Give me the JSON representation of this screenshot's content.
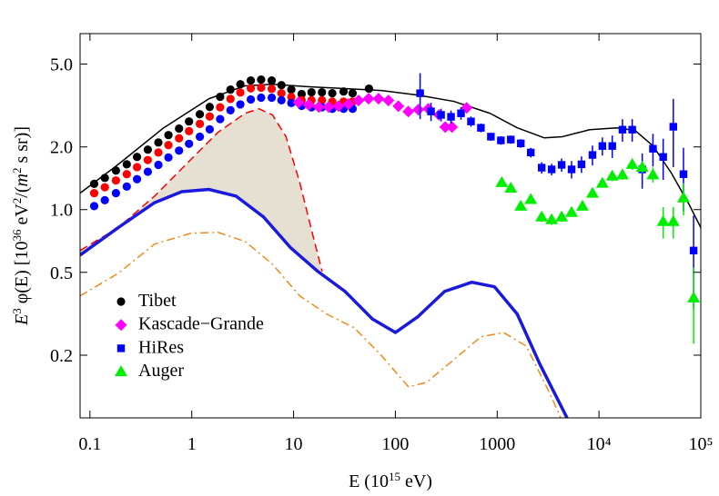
{
  "chart_data": {
    "type": "scatter",
    "xlabel": [
      {
        "text": "E (10"
      },
      {
        "text": "15",
        "sup": true
      },
      {
        "text": " eV)"
      }
    ],
    "ylabel": [
      {
        "text": "E",
        "italic": true
      },
      {
        "text": "3",
        "sup": true
      },
      {
        "text": " φ(E)  [10"
      },
      {
        "text": "36",
        "sup": true
      },
      {
        "text": " eV"
      },
      {
        "text": "2",
        "sup": true
      },
      {
        "text": "/("
      },
      {
        "text": "m",
        "italic": true
      },
      {
        "text": "2",
        "sup": true
      },
      {
        "text": " s sr)]"
      }
    ],
    "xscale": "log",
    "yscale": "log",
    "xlim": [
      0.08,
      100000
    ],
    "ylim": [
      0.1,
      7
    ],
    "xticks": [
      0.1,
      1,
      10,
      100,
      1000,
      {
        "value": 10000,
        "label": "10⁴"
      },
      {
        "value": 100000,
        "label": "10⁵"
      }
    ],
    "yticks": [
      0.2,
      0.5,
      {
        "value": 1,
        "label": "1.0"
      },
      {
        "value": 2,
        "label": "2.0"
      },
      {
        "value": 5,
        "label": "5.0"
      }
    ],
    "legend": "lower left",
    "shade_color": "#e6e0d2",
    "series": [
      {
        "name": "Tibet",
        "color": "#000000",
        "marker": "circle",
        "x": [
          0.11,
          0.14,
          0.18,
          0.23,
          0.29,
          0.37,
          0.47,
          0.59,
          0.75,
          0.94,
          1.2,
          1.5,
          1.9,
          2.4,
          3.0,
          3.8,
          4.8,
          6.1,
          7.6,
          9.5,
          12,
          15,
          19,
          24,
          31,
          38,
          55
        ],
        "values": [
          1.33,
          1.42,
          1.54,
          1.65,
          1.79,
          1.94,
          2.1,
          2.28,
          2.45,
          2.65,
          2.87,
          3.11,
          3.48,
          3.77,
          4.0,
          4.17,
          4.21,
          4.17,
          3.96,
          3.77,
          3.59,
          3.66,
          3.66,
          3.62,
          3.69,
          3.62,
          3.81
        ]
      },
      {
        "color": "#ff0000",
        "marker": "circle",
        "x": [
          0.11,
          0.14,
          0.18,
          0.23,
          0.29,
          0.37,
          0.47,
          0.59,
          0.75,
          0.94,
          1.2,
          1.5,
          1.9,
          2.4,
          3.0,
          3.8,
          4.8,
          6.1,
          7.6,
          9.5,
          12,
          15,
          19,
          24,
          31,
          38
        ],
        "values": [
          1.2,
          1.28,
          1.38,
          1.48,
          1.6,
          1.73,
          1.88,
          2.04,
          2.2,
          2.38,
          2.58,
          2.8,
          3.1,
          3.4,
          3.65,
          3.82,
          3.85,
          3.8,
          3.62,
          3.47,
          3.35,
          3.35,
          3.35,
          3.3,
          3.3,
          3.3
        ]
      },
      {
        "color": "#0000ff",
        "marker": "circle",
        "x": [
          0.11,
          0.14,
          0.18,
          0.23,
          0.29,
          0.37,
          0.47,
          0.59,
          0.75,
          0.94,
          1.2,
          1.5,
          1.9,
          2.4,
          3.0,
          3.8,
          4.8,
          6.1,
          7.6,
          9.5,
          12,
          15,
          19,
          24,
          31,
          38
        ],
        "values": [
          1.04,
          1.11,
          1.2,
          1.29,
          1.4,
          1.52,
          1.64,
          1.78,
          1.92,
          2.07,
          2.24,
          2.43,
          2.72,
          3.0,
          3.2,
          3.38,
          3.45,
          3.45,
          3.35,
          3.25,
          3.15,
          3.1,
          3.1,
          3.05,
          3.05,
          3.05
        ]
      },
      {
        "name": "Kascade−Grande",
        "color": "#ff00ff",
        "marker": "diamond",
        "x": [
          11.2,
          14.1,
          17.7,
          22.1,
          27.7,
          34.7,
          43.5,
          54.5,
          68.3,
          85.5,
          107,
          134,
          168,
          211,
          269,
          309,
          360,
          501
        ],
        "values": [
          3.27,
          3.18,
          3.11,
          3.11,
          3.14,
          3.21,
          3.34,
          3.41,
          3.41,
          3.34,
          3.14,
          2.96,
          3.02,
          3.05,
          2.85,
          2.49,
          2.49,
          3.08
        ]
      },
      {
        "name": "HiRes",
        "color": "#0000ff",
        "marker": "square",
        "x": [
          175,
          224,
          281,
          352,
          441,
          553,
          692,
          867,
          1087,
          1361,
          1706,
          2138,
          2736,
          3428,
          4295,
          5380,
          6736,
          8630,
          10800,
          13500,
          17000,
          21200,
          26600,
          33900,
          42700,
          53700,
          67600,
          85000
        ],
        "values": [
          3.62,
          2.96,
          2.85,
          2.79,
          2.9,
          2.65,
          2.47,
          2.24,
          2.15,
          2.17,
          2.08,
          1.88,
          1.59,
          1.56,
          1.64,
          1.56,
          1.65,
          1.83,
          2.02,
          2.02,
          2.42,
          2.42,
          1.56,
          1.96,
          1.79,
          2.5,
          1.48,
          0.636
        ],
        "errors": [
          0.9,
          0.3,
          0.2,
          0.2,
          0.2,
          0.15,
          0.12,
          0.1,
          0.1,
          0.1,
          0.1,
          0.1,
          0.1,
          0.1,
          0.12,
          0.15,
          0.15,
          0.2,
          0.2,
          0.25,
          0.3,
          0.3,
          0.3,
          0.35,
          0.4,
          0.9,
          0.5,
          0.3
        ]
      },
      {
        "name": "Auger",
        "color": "#00ee00",
        "marker": "triangle",
        "x": [
          1110,
          1361,
          1706,
          2138,
          2736,
          3428,
          4295,
          5380,
          6880,
          8630,
          10800,
          13500,
          17000,
          21200,
          26600,
          33900,
          42700,
          53700,
          67600,
          85000
        ],
        "values": [
          1.35,
          1.27,
          1.04,
          1.12,
          0.923,
          0.895,
          0.923,
          0.97,
          1.04,
          1.2,
          1.34,
          1.45,
          1.47,
          1.65,
          1.6,
          1.47,
          0.877,
          0.877,
          1.14,
          0.377
        ],
        "errors": [
          0.05,
          0.05,
          0.05,
          0.05,
          0.05,
          0.05,
          0.05,
          0.05,
          0.05,
          0.06,
          0.07,
          0.08,
          0.08,
          0.1,
          0.1,
          0.12,
          0.15,
          0.15,
          0.2,
          0.15
        ]
      }
    ],
    "curves": [
      {
        "color": "#000000",
        "dash": "solid",
        "linewidth": 1.5,
        "x": [
          0.08,
          0.19,
          0.53,
          1.48,
          3.35,
          6.2,
          14.1,
          32,
          72.6,
          165,
          374,
          851,
          1574,
          2911,
          4385,
          8110,
          15000,
          22600,
          34000,
          51300,
          77400,
          100000
        ],
        "values": [
          1.2,
          1.65,
          2.47,
          3.41,
          3.93,
          4.0,
          3.89,
          3.81,
          3.73,
          3.55,
          3.31,
          2.9,
          2.47,
          2.21,
          2.24,
          2.42,
          2.47,
          2.4,
          2.02,
          1.5,
          1.05,
          0.82
        ]
      },
      {
        "color": "#ff0000",
        "dash": "dashed",
        "linewidth": 1.5,
        "x": [
          0.08,
          0.19,
          0.431,
          0.98,
          1.81,
          3.35,
          4.56,
          6.2,
          8.43,
          11.5,
          15.6,
          19.1
        ],
        "values": [
          0.636,
          0.82,
          1.16,
          1.74,
          2.35,
          2.9,
          3.05,
          2.85,
          2.24,
          1.35,
          0.74,
          0.505
        ]
      },
      {
        "color": "#1a1add",
        "dash": "solid",
        "linewidth": 3.5,
        "x": [
          0.08,
          0.19,
          0.431,
          0.798,
          1.48,
          2.73,
          5.06,
          9.35,
          17.3,
          32,
          59.2,
          100,
          165,
          305,
          564,
          942,
          1574,
          2627,
          4855
        ],
        "values": [
          0.605,
          0.82,
          1.08,
          1.22,
          1.25,
          1.16,
          0.923,
          0.656,
          0.505,
          0.405,
          0.299,
          0.257,
          0.305,
          0.405,
          0.448,
          0.426,
          0.315,
          0.181,
          0.1
        ]
      },
      {
        "color": "#f08a1c",
        "dash": "dashdot",
        "linewidth": 1.5,
        "x": [
          0.08,
          0.19,
          0.431,
          0.98,
          1.81,
          3.35,
          6.2,
          11.5,
          21.2,
          39.3,
          72.6,
          134,
          202,
          374,
          692,
          1157,
          1932,
          3222,
          4210
        ],
        "values": [
          0.385,
          0.495,
          0.683,
          0.77,
          0.778,
          0.703,
          0.547,
          0.385,
          0.315,
          0.271,
          0.2,
          0.141,
          0.148,
          0.19,
          0.245,
          0.257,
          0.221,
          0.134,
          0.1
        ]
      }
    ],
    "shade_between": [
      1,
      2
    ]
  }
}
